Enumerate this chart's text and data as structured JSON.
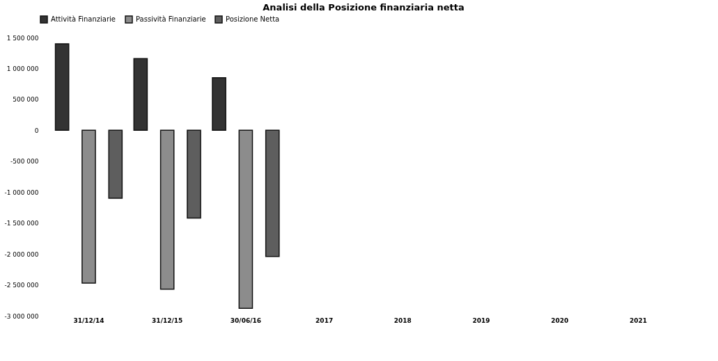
{
  "chart_data": {
    "type": "bar",
    "title": "Analisi della Posizione finanziaria netta",
    "categories": [
      "31/12/14",
      "31/12/15",
      "30/06/16",
      "2017",
      "2018",
      "2019",
      "2020",
      "2021"
    ],
    "series": [
      {
        "name": "Attività Finanziarie",
        "color": "#333333",
        "values": [
          1400000,
          1160000,
          850000,
          null,
          null,
          null,
          null,
          null
        ]
      },
      {
        "name": "Passività Finanziarie",
        "color": "#8c8c8c",
        "values": [
          -2470000,
          -2570000,
          -2880000,
          null,
          null,
          null,
          null,
          null
        ]
      },
      {
        "name": "Posizione Netta",
        "color": "#5e5e5e",
        "values": [
          -1100000,
          -1420000,
          -2040000,
          null,
          null,
          null,
          null,
          null
        ]
      }
    ],
    "ylim": [
      -3000000,
      1500000
    ],
    "yticks": [
      {
        "value": -3000000,
        "label": "-3 000 000"
      },
      {
        "value": -2500000,
        "label": "-2 500 000"
      },
      {
        "value": -2000000,
        "label": "-2 000 000"
      },
      {
        "value": -1500000,
        "label": "-1 500 000"
      },
      {
        "value": -1000000,
        "label": "-1 000 000"
      },
      {
        "value": -500000,
        "label": "-500 000"
      },
      0,
      {
        "value": 500000,
        "label": "500 000"
      },
      {
        "value": 1000000,
        "label": "1 000 000"
      },
      {
        "value": 1500000,
        "label": "1 500 000"
      }
    ],
    "grid": false,
    "legend": "top"
  }
}
